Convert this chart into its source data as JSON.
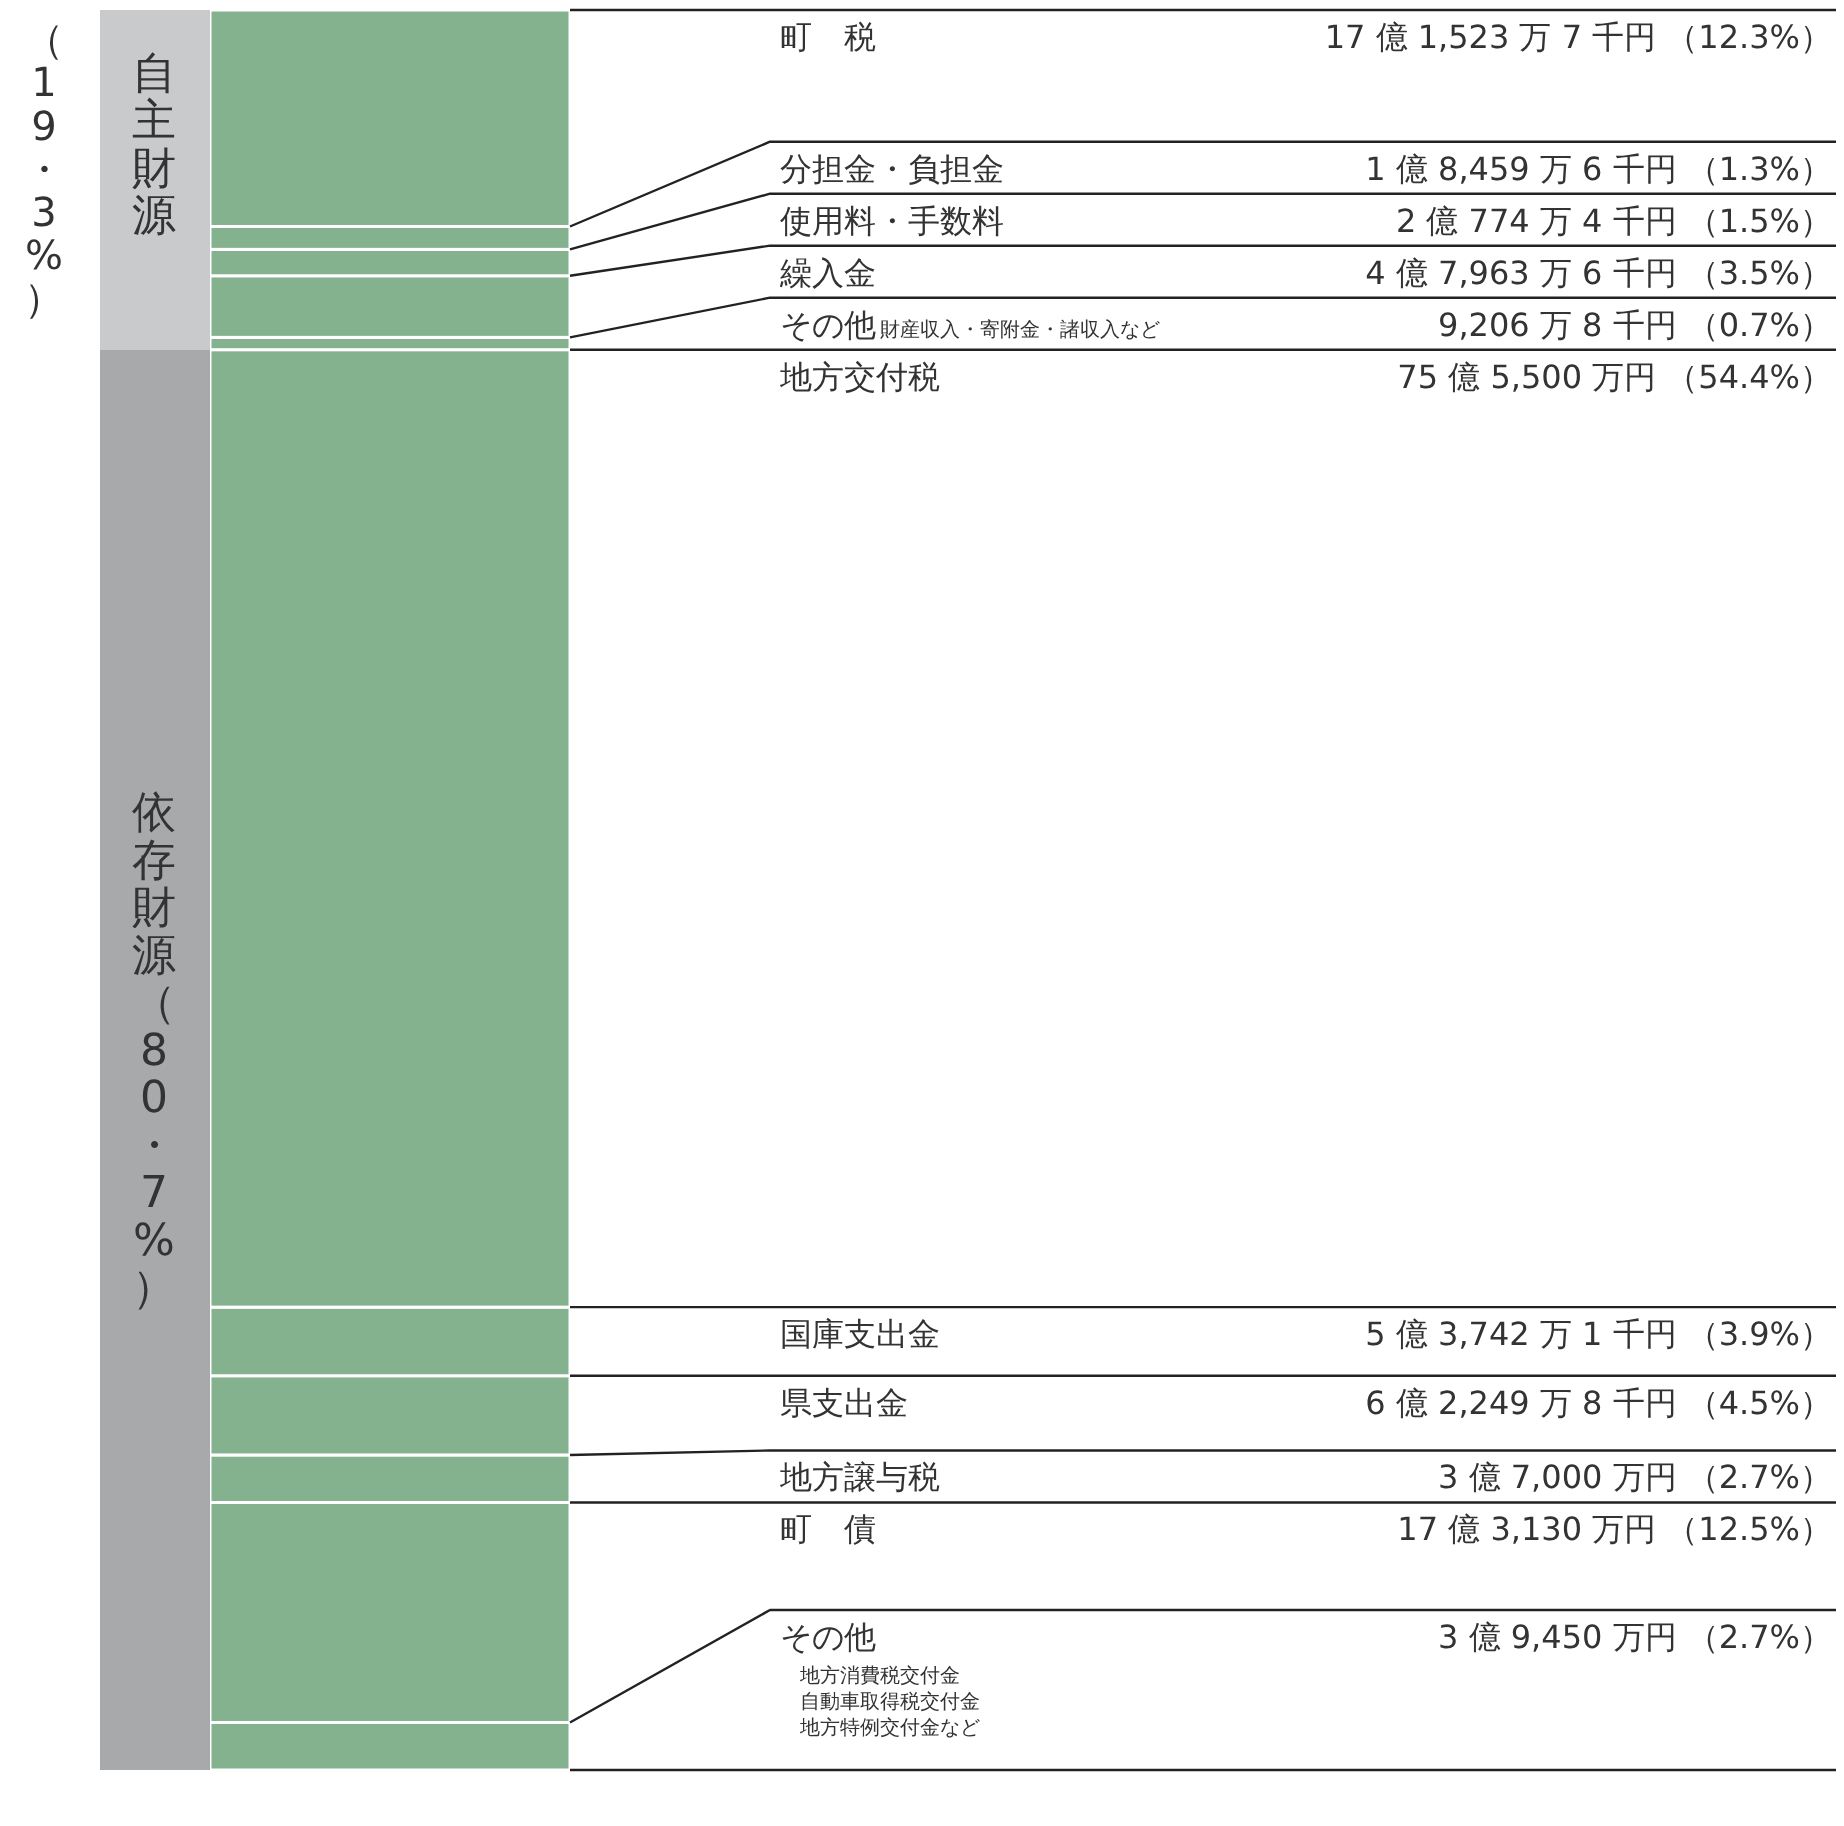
{
  "chart_data": {
    "type": "bar",
    "stacked": true,
    "categories": [
      null
    ],
    "ylim": [
      0,
      100
    ],
    "legend": false,
    "series": [
      {
        "name": "その他",
        "color": "#84b18e",
        "values": [
          2.7
        ],
        "value_labels": [
          "3 億 9,450 万円 （2.7%）"
        ]
      },
      {
        "name": "町　債",
        "color": "#84b18e",
        "values": [
          12.5
        ],
        "value_labels": [
          "17 億 3,130 万円 （12.5%）"
        ]
      },
      {
        "name": "地方譲与税",
        "color": "#84b18e",
        "values": [
          2.7
        ],
        "value_labels": [
          "3 億 7,000 万円 （2.7%）"
        ]
      },
      {
        "name": "県支出金",
        "color": "#84b18e",
        "values": [
          4.5
        ],
        "value_labels": [
          "6 億 2,249 万 8 千円 （4.5%）"
        ]
      },
      {
        "name": "国庫支出金",
        "color": "#84b18e",
        "values": [
          3.9
        ],
        "value_labels": [
          "5 億 3,742 万 1 千円 （3.9%）"
        ]
      },
      {
        "name": "地方交付税",
        "color": "#84b18e",
        "values": [
          54.4
        ],
        "value_labels": [
          "75 億 5,500 万円 （54.4%）"
        ]
      },
      {
        "name": "その他",
        "color": "#84b18e",
        "values": [
          0.7
        ],
        "value_labels": [
          "9,206 万 8 千円 （0.7%）"
        ]
      },
      {
        "name": "繰入金",
        "color": "#84b18e",
        "values": [
          3.5
        ],
        "value_labels": [
          "4 億 7,963 万 6 千円 （3.5%）"
        ]
      },
      {
        "name": "使用料・手数料",
        "color": "#84b18e",
        "values": [
          1.5
        ],
        "value_labels": [
          "2 億 774 万 4 千円 （1.5%）"
        ]
      },
      {
        "name": "分担金・負担金",
        "color": "#84b18e",
        "values": [
          1.3
        ],
        "value_labels": [
          "1 億 8,459 万 6 千円 （1.3%）"
        ]
      },
      {
        "name": "町　税",
        "color": "#84b18e",
        "values": [
          12.3
        ],
        "value_labels": [
          "17 億 1,523 万 7 千円 （12.3%）"
        ]
      }
    ],
    "annotations": [
      "自主財源",
      "（19・3%）",
      "依存財源（80・7%）",
      "財産収入・寄附金・諸収入など",
      "地方消費税交付金",
      "自動車取得税交付金",
      "地方特例交付金など"
    ]
  }
}
